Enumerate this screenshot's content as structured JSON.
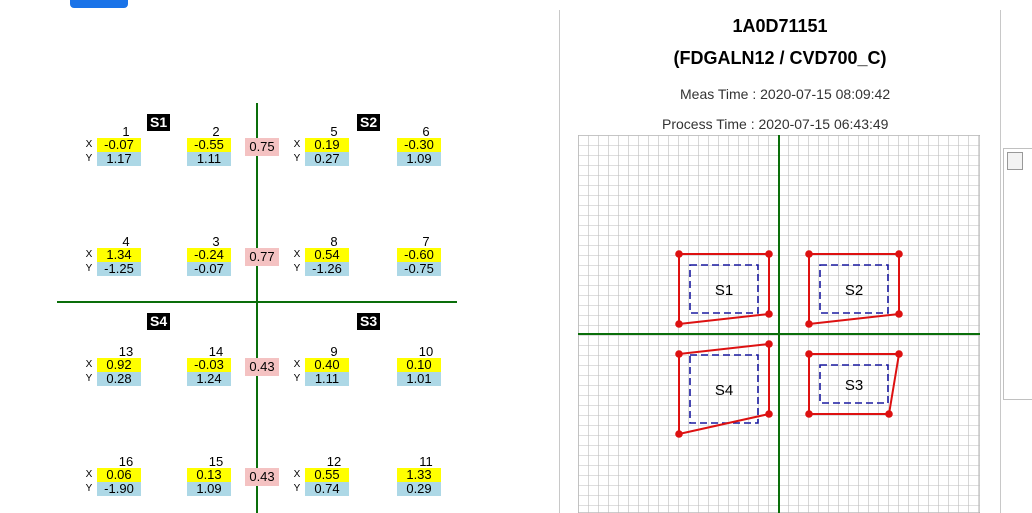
{
  "header": {
    "tab_color": "#1a73e8"
  },
  "left": {
    "quadrants": [
      {
        "id": "S1",
        "label": "S1"
      },
      {
        "id": "S2",
        "label": "S2"
      },
      {
        "id": "S3",
        "label": "S3"
      },
      {
        "id": "S4",
        "label": "S4"
      }
    ],
    "axis_labels": {
      "x": "X",
      "y": "Y"
    },
    "points": [
      {
        "num": "1",
        "x": "-0.07",
        "y": "1.17"
      },
      {
        "num": "2",
        "x": "-0.55",
        "y": "1.11"
      },
      {
        "num": "5",
        "x": "0.19",
        "y": "0.27"
      },
      {
        "num": "6",
        "x": "-0.30",
        "y": "1.09"
      },
      {
        "num": "4",
        "x": "1.34",
        "y": "-1.25"
      },
      {
        "num": "3",
        "x": "-0.24",
        "y": "-0.07"
      },
      {
        "num": "8",
        "x": "0.54",
        "y": "-1.26"
      },
      {
        "num": "7",
        "x": "-0.60",
        "y": "-0.75"
      },
      {
        "num": "13",
        "x": "0.92",
        "y": "0.28"
      },
      {
        "num": "14",
        "x": "-0.03",
        "y": "1.24"
      },
      {
        "num": "9",
        "x": "0.40",
        "y": "1.11"
      },
      {
        "num": "10",
        "x": "0.10",
        "y": "1.01"
      },
      {
        "num": "16",
        "x": "0.06",
        "y": "-1.90"
      },
      {
        "num": "15",
        "x": "0.13",
        "y": "1.09"
      },
      {
        "num": "12",
        "x": "0.55",
        "y": "0.74"
      },
      {
        "num": "11",
        "x": "1.33",
        "y": "0.29"
      }
    ],
    "center_values": [
      "0.75",
      "0.77",
      "0.43",
      "0.43"
    ]
  },
  "right": {
    "title": "1A0D71151",
    "subtitle": "(FDGALN12 / CVD700_C)",
    "meas_time": "Meas Time : 2020-07-15 08:09:42",
    "process_time": "Process Time : 2020-07-15 06:43:49",
    "shots": [
      {
        "label": "S1",
        "corners": [
          [
            -5.0,
            4.0
          ],
          [
            -0.5,
            4.0
          ],
          [
            -0.5,
            1.0
          ],
          [
            -5.0,
            0.5
          ]
        ]
      },
      {
        "label": "S2",
        "corners": [
          [
            1.5,
            4.0
          ],
          [
            6.0,
            4.0
          ],
          [
            6.0,
            1.0
          ],
          [
            1.5,
            0.5
          ]
        ]
      },
      {
        "label": "S4",
        "corners": [
          [
            -5.0,
            -1.0
          ],
          [
            -0.5,
            -0.5
          ],
          [
            -0.5,
            -4.0
          ],
          [
            -5.0,
            -5.0
          ]
        ]
      },
      {
        "label": "S3",
        "corners": [
          [
            1.5,
            -1.0
          ],
          [
            6.0,
            -1.0
          ],
          [
            5.5,
            -4.0
          ],
          [
            1.5,
            -4.0
          ]
        ]
      }
    ],
    "colors": {
      "measured": "#dd1111",
      "nominal": "#1a1aa0",
      "axis": "#0a6e0a",
      "grid": "#bdbdbd"
    }
  }
}
